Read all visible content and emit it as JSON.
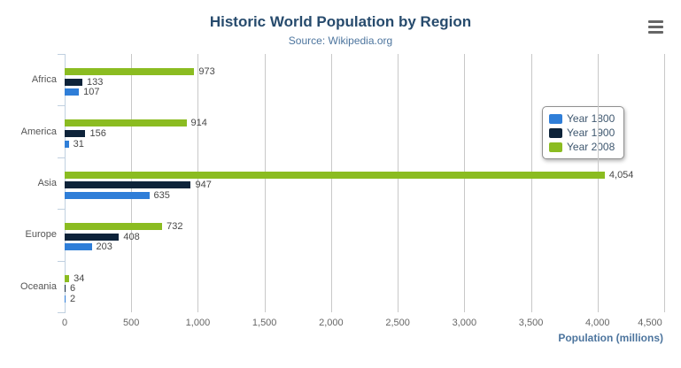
{
  "chart": {
    "title": "Historic World Population by Region",
    "subtitle": "Source: Wikipedia.org",
    "xaxis_title": "Population (millions)"
  },
  "colors": {
    "title": "#274b6d",
    "subtitle": "#4d759e",
    "axis_title": "#4d759e",
    "axis_labels": "#666666",
    "category_labels": "#555555",
    "data_labels": "#474747",
    "gridline": "#c8c8c8",
    "axis_line": "#c0d0e0",
    "legend_border": "#909090",
    "legend_text": "#3e576f",
    "burger_icon": "#666666",
    "background": "#ffffff"
  },
  "chart_data": {
    "type": "bar",
    "orientation": "horizontal",
    "title": "Historic World Population by Region",
    "subtitle": "Source: Wikipedia.org",
    "categories": [
      "Africa",
      "America",
      "Asia",
      "Europe",
      "Oceania"
    ],
    "series": [
      {
        "name": "Year 1800",
        "color": "#2f7ed8",
        "values": [
          107,
          31,
          635,
          203,
          2
        ],
        "labels": [
          "107",
          "31",
          "635",
          "203",
          "2"
        ]
      },
      {
        "name": "Year 1900",
        "color": "#0d233a",
        "values": [
          133,
          156,
          947,
          408,
          6
        ],
        "labels": [
          "133",
          "156",
          "947",
          "408",
          "6"
        ]
      },
      {
        "name": "Year 2008",
        "color": "#8bbc21",
        "values": [
          973,
          914,
          4054,
          732,
          34
        ],
        "labels": [
          "973",
          "914",
          "4,054",
          "732",
          "34"
        ]
      }
    ],
    "display_order_top_to_bottom": [
      "Year 2008",
      "Year 1900",
      "Year 1800"
    ],
    "xlabel": "Population (millions)",
    "ylabel": "",
    "xlim": [
      0,
      4500
    ],
    "tick_interval": 500,
    "tick_labels": [
      "0",
      "500",
      "1,000",
      "1,500",
      "2,000",
      "2,500",
      "3,000",
      "3,500",
      "4,000",
      "4,500"
    ],
    "grid": true,
    "data_labels": true,
    "legend": {
      "position": "floating-top-right",
      "items": [
        "Year 1800",
        "Year 1900",
        "Year 2008"
      ]
    }
  },
  "export_menu": {
    "icon": "hamburger-icon"
  }
}
